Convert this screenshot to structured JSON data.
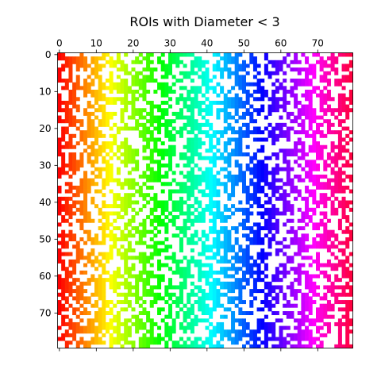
{
  "chart_data": {
    "type": "heatmap",
    "title": "ROIs with Diameter < 3",
    "xlabel": "",
    "ylabel": "",
    "grid_size": [
      80,
      80
    ],
    "xlim": [
      0,
      80
    ],
    "ylim": [
      80,
      0
    ],
    "x_ticks": [
      0,
      10,
      20,
      30,
      40,
      50,
      60,
      70
    ],
    "y_ticks": [
      0,
      10,
      20,
      30,
      40,
      50,
      60,
      70
    ],
    "x_axis_position": "top",
    "colormap": "hsv",
    "color_by": "column index",
    "background_color": "#ffffff",
    "fill_fraction": 0.4,
    "grid": false,
    "legend": "none",
    "value_description": "Each cell marks whether a pixel belongs to an ROI with diameter < 3; filled cells are colored by column (red at x=0 through yellow, green, cyan, blue, violet, magenta to red at x=79)."
  }
}
